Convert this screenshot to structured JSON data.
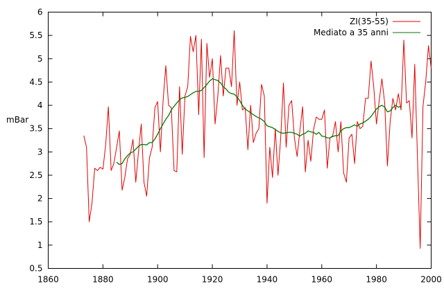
{
  "chart_data": {
    "type": "line",
    "title": "",
    "xlabel": "",
    "ylabel": "mBar",
    "xlim": [
      1860,
      2000
    ],
    "ylim": [
      0.5,
      6
    ],
    "xticks": [
      1860,
      1880,
      1900,
      1920,
      1940,
      1960,
      1980,
      2000
    ],
    "xtick_labels": [
      "1860",
      "1880",
      "1900",
      "1920",
      "1940",
      "1960",
      "1980",
      "2000"
    ],
    "yticks": [
      0.5,
      1,
      1.5,
      2,
      2.5,
      3,
      3.5,
      4,
      4.5,
      5,
      5.5,
      6
    ],
    "ytick_labels": [
      "0.5",
      "1",
      "1.5",
      "2",
      "2.5",
      "3",
      "3.5",
      "4",
      "4.5",
      "5",
      "5.5",
      "6"
    ],
    "grid": false,
    "legend": "top-right",
    "series": [
      {
        "name": "ZI(35-55)",
        "color": "#e00000",
        "x": [
          1873,
          1874,
          1875,
          1876,
          1877,
          1878,
          1879,
          1880,
          1881,
          1882,
          1883,
          1884,
          1885,
          1886,
          1887,
          1888,
          1889,
          1890,
          1891,
          1892,
          1893,
          1894,
          1895,
          1896,
          1897,
          1898,
          1899,
          1900,
          1901,
          1902,
          1903,
          1904,
          1905,
          1906,
          1907,
          1908,
          1909,
          1910,
          1911,
          1912,
          1913,
          1914,
          1915,
          1916,
          1917,
          1918,
          1919,
          1920,
          1921,
          1922,
          1923,
          1924,
          1925,
          1926,
          1927,
          1928,
          1929,
          1930,
          1931,
          1932,
          1933,
          1934,
          1935,
          1936,
          1937,
          1938,
          1939,
          1940,
          1941,
          1942,
          1943,
          1944,
          1945,
          1946,
          1947,
          1948,
          1949,
          1950,
          1951,
          1952,
          1953,
          1954,
          1955,
          1956,
          1957,
          1958,
          1959,
          1960,
          1961,
          1962,
          1963,
          1964,
          1965,
          1966,
          1967,
          1968,
          1969,
          1970,
          1971,
          1972,
          1973,
          1974,
          1975,
          1976,
          1977,
          1978,
          1979,
          1980,
          1981,
          1982,
          1983,
          1984,
          1985,
          1986,
          1987,
          1988,
          1989,
          1990,
          1991,
          1992,
          1993,
          1994,
          1995,
          1996,
          1997,
          1998,
          1999,
          2000
        ],
        "y": [
          3.35,
          3.1,
          1.5,
          1.9,
          2.65,
          2.6,
          2.67,
          2.63,
          3.15,
          3.97,
          2.6,
          2.75,
          3.1,
          3.45,
          2.18,
          2.45,
          2.85,
          2.95,
          3.27,
          2.35,
          3.0,
          3.6,
          2.35,
          2.05,
          2.87,
          3.1,
          3.95,
          4.08,
          3.0,
          4.1,
          4.85,
          4.0,
          3.95,
          2.6,
          2.57,
          4.4,
          2.95,
          4.2,
          4.4,
          5.48,
          5.15,
          5.5,
          3.8,
          5.42,
          2.88,
          5.33,
          4.6,
          5.0,
          3.6,
          4.2,
          5.07,
          4.2,
          4.8,
          4.8,
          4.4,
          5.6,
          4.0,
          4.5,
          3.9,
          3.95,
          3.05,
          4.0,
          3.2,
          3.4,
          3.5,
          4.45,
          4.2,
          1.9,
          3.1,
          2.45,
          3.5,
          2.5,
          3.3,
          4.48,
          3.1,
          4.0,
          4.1,
          3.3,
          2.9,
          3.45,
          3.97,
          2.57,
          3.25,
          2.8,
          3.48,
          3.75,
          3.7,
          3.7,
          3.9,
          2.65,
          3.3,
          3.35,
          3.65,
          3.0,
          3.65,
          2.55,
          2.35,
          3.3,
          3.38,
          2.75,
          3.65,
          3.5,
          3.55,
          4.15,
          4.15,
          4.95,
          4.4,
          3.6,
          4.1,
          4.57,
          4.05,
          2.7,
          3.65,
          4.15,
          3.9,
          4.25,
          3.9,
          5.4,
          4.05,
          4.1,
          3.3,
          4.88,
          2.85,
          0.93,
          3.98,
          4.5,
          5.28,
          4.8
        ]
      },
      {
        "name": "Mediato a 35 anni",
        "color": "#007700",
        "x": [
          1885,
          1886,
          1887,
          1888,
          1889,
          1890,
          1891,
          1892,
          1893,
          1894,
          1895,
          1896,
          1897,
          1898,
          1899,
          1900,
          1901,
          1902,
          1903,
          1904,
          1905,
          1906,
          1907,
          1908,
          1909,
          1910,
          1911,
          1912,
          1913,
          1914,
          1915,
          1916,
          1917,
          1918,
          1919,
          1920,
          1921,
          1922,
          1923,
          1924,
          1925,
          1926,
          1927,
          1928,
          1929,
          1930,
          1931,
          1932,
          1933,
          1934,
          1935,
          1936,
          1937,
          1938,
          1939,
          1940,
          1941,
          1942,
          1943,
          1944,
          1945,
          1946,
          1947,
          1948,
          1949,
          1950,
          1951,
          1952,
          1953,
          1954,
          1955,
          1956,
          1957,
          1958,
          1959,
          1960,
          1961,
          1962,
          1963,
          1964,
          1965,
          1966,
          1967,
          1968,
          1969,
          1970,
          1971,
          1972,
          1973,
          1974,
          1975,
          1976,
          1977,
          1978,
          1979,
          1980,
          1981,
          1982,
          1983,
          1984,
          1985,
          1986,
          1987,
          1988,
          1989
        ],
        "y": [
          2.78,
          2.73,
          2.75,
          2.85,
          2.92,
          2.98,
          3.0,
          3.06,
          3.12,
          3.16,
          3.16,
          3.15,
          3.2,
          3.2,
          3.28,
          3.38,
          3.5,
          3.6,
          3.7,
          3.78,
          3.9,
          3.98,
          4.05,
          4.12,
          4.16,
          4.17,
          4.19,
          4.23,
          4.27,
          4.3,
          4.3,
          4.32,
          4.38,
          4.45,
          4.52,
          4.57,
          4.55,
          4.53,
          4.48,
          4.4,
          4.35,
          4.28,
          4.25,
          4.24,
          4.18,
          4.1,
          4.0,
          3.92,
          3.88,
          3.84,
          3.8,
          3.76,
          3.73,
          3.7,
          3.65,
          3.56,
          3.54,
          3.52,
          3.48,
          3.44,
          3.41,
          3.4,
          3.41,
          3.42,
          3.42,
          3.4,
          3.38,
          3.34,
          3.38,
          3.4,
          3.45,
          3.43,
          3.42,
          3.38,
          3.42,
          3.34,
          3.33,
          3.3,
          3.3,
          3.33,
          3.35,
          3.35,
          3.45,
          3.5,
          3.52,
          3.52,
          3.55,
          3.58,
          3.55,
          3.6,
          3.62,
          3.66,
          3.7,
          3.76,
          3.84,
          3.92,
          3.97,
          4.0,
          3.96,
          3.86,
          3.88,
          3.95,
          4.0,
          3.96,
          3.98
        ]
      }
    ]
  }
}
